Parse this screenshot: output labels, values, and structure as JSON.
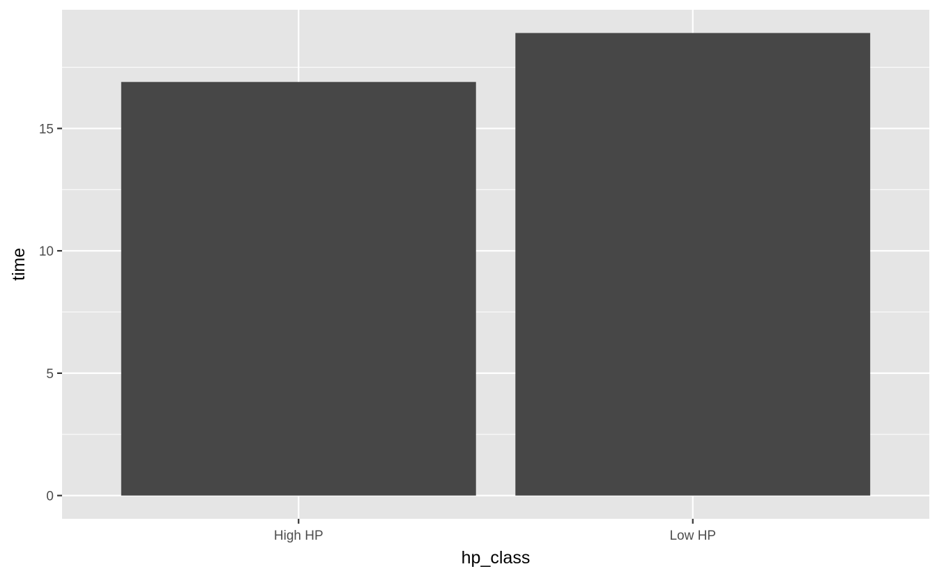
{
  "chart_data": {
    "type": "bar",
    "title": "",
    "xlabel": "hp_class",
    "ylabel": "time",
    "categories": [
      "High HP",
      "Low HP"
    ],
    "values": [
      16.9,
      18.9
    ],
    "ylim": [
      -0.95,
      19.85
    ],
    "yticks": [
      0,
      5,
      10,
      15
    ],
    "grid": true,
    "legend": "none",
    "colors": {
      "bar": "#474747",
      "panel": "#e5e5e5",
      "grid": "#ffffff",
      "tick": "#333333"
    }
  }
}
